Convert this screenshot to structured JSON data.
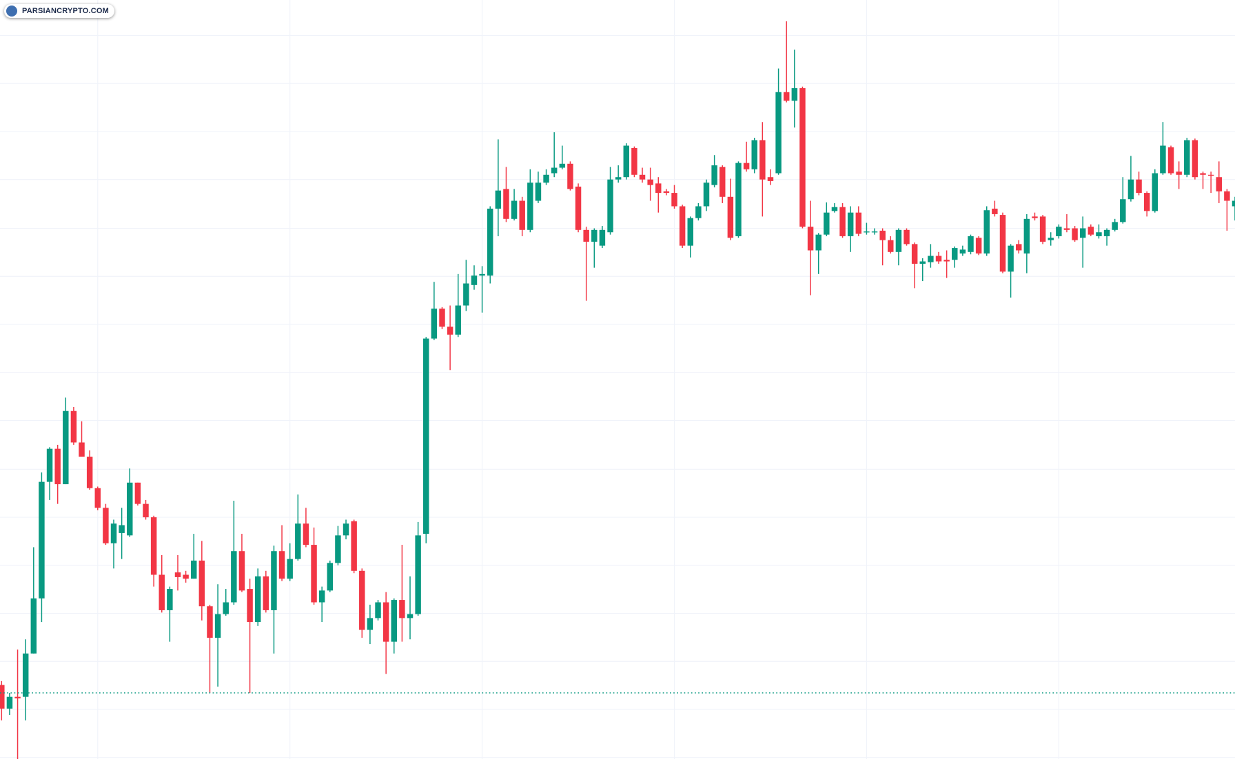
{
  "brand": "PARSIANCRYPTO.COM",
  "chart_data": {
    "type": "candlestick",
    "up_color": "#089981",
    "down_color": "#f23645",
    "price_line_color": "#089981",
    "xlim": [
      -0.2,
      154.0
    ],
    "ylim": [
      0,
      964
    ],
    "grid_x": [
      12,
      36,
      60,
      84,
      108,
      132
    ],
    "grid_y": [
      919,
      858,
      797,
      736,
      674,
      613,
      552,
      491,
      430,
      368,
      307,
      246,
      185,
      124,
      63,
      2
    ],
    "price_line": 84,
    "ohlc": [
      [
        94,
        99,
        49,
        64
      ],
      [
        64,
        84,
        56,
        79
      ],
      [
        79,
        139,
        0,
        77
      ],
      [
        79,
        152,
        49,
        134
      ],
      [
        134,
        269,
        134,
        204
      ],
      [
        204,
        364,
        174,
        352
      ],
      [
        352,
        396,
        329,
        394
      ],
      [
        394,
        399,
        324,
        349
      ],
      [
        349,
        459,
        349,
        442
      ],
      [
        442,
        447,
        399,
        402
      ],
      [
        402,
        429,
        384,
        384
      ],
      [
        384,
        392,
        342,
        344
      ],
      [
        344,
        346,
        316,
        319
      ],
      [
        319,
        324,
        272,
        274
      ],
      [
        274,
        304,
        242,
        299
      ],
      [
        287,
        319,
        254,
        297
      ],
      [
        284,
        369,
        282,
        351
      ],
      [
        351,
        351,
        322,
        324
      ],
      [
        324,
        329,
        304,
        307
      ],
      [
        307,
        309,
        219,
        234
      ],
      [
        234,
        259,
        186,
        189
      ],
      [
        189,
        219,
        149,
        216
      ],
      [
        237,
        259,
        214,
        231
      ],
      [
        234,
        239,
        224,
        229
      ],
      [
        229,
        286,
        229,
        252
      ],
      [
        252,
        277,
        176,
        194
      ],
      [
        194,
        196,
        84,
        154
      ],
      [
        154,
        222,
        92,
        184
      ],
      [
        184,
        216,
        182,
        199
      ],
      [
        199,
        328,
        196,
        264
      ],
      [
        264,
        286,
        212,
        214
      ],
      [
        216,
        229,
        84,
        174
      ],
      [
        174,
        242,
        169,
        232
      ],
      [
        232,
        239,
        186,
        189
      ],
      [
        189,
        271,
        134,
        264
      ],
      [
        264,
        297,
        226,
        229
      ],
      [
        229,
        274,
        226,
        254
      ],
      [
        254,
        336,
        252,
        299
      ],
      [
        299,
        319,
        269,
        272
      ],
      [
        272,
        294,
        196,
        199
      ],
      [
        199,
        219,
        174,
        214
      ],
      [
        214,
        252,
        212,
        249
      ],
      [
        249,
        296,
        246,
        284
      ],
      [
        284,
        304,
        279,
        299
      ],
      [
        302,
        304,
        236,
        239
      ],
      [
        239,
        242,
        154,
        164
      ],
      [
        164,
        196,
        146,
        179
      ],
      [
        179,
        202,
        176,
        199
      ],
      [
        199,
        212,
        108,
        149
      ],
      [
        149,
        204,
        134,
        202
      ],
      [
        202,
        272,
        149,
        179
      ],
      [
        179,
        232,
        152,
        184
      ],
      [
        184,
        301,
        182,
        284
      ],
      [
        286,
        536,
        274,
        534
      ],
      [
        534,
        606,
        532,
        572
      ],
      [
        572,
        574,
        546,
        549
      ],
      [
        549,
        576,
        494,
        539
      ],
      [
        539,
        616,
        536,
        576
      ],
      [
        576,
        634,
        569,
        604
      ],
      [
        602,
        627,
        596,
        614
      ],
      [
        614,
        626,
        567,
        616
      ],
      [
        614,
        702,
        604,
        699
      ],
      [
        699,
        787,
        664,
        722
      ],
      [
        724,
        752,
        682,
        686
      ],
      [
        686,
        724,
        684,
        709
      ],
      [
        709,
        714,
        664,
        672
      ],
      [
        672,
        749,
        669,
        732
      ],
      [
        709,
        746,
        706,
        732
      ],
      [
        732,
        749,
        729,
        742
      ],
      [
        744,
        796,
        739,
        751
      ],
      [
        751,
        779,
        749,
        756
      ],
      [
        756,
        759,
        722,
        724
      ],
      [
        727,
        731,
        669,
        672
      ],
      [
        672,
        676,
        582,
        657
      ],
      [
        657,
        674,
        624,
        672
      ],
      [
        652,
        677,
        649,
        672
      ],
      [
        669,
        752,
        666,
        736
      ],
      [
        736,
        754,
        732,
        739
      ],
      [
        739,
        782,
        736,
        779
      ],
      [
        776,
        778,
        739,
        742
      ],
      [
        742,
        751,
        732,
        736
      ],
      [
        736,
        751,
        709,
        729
      ],
      [
        731,
        739,
        694,
        719
      ],
      [
        721,
        724,
        716,
        719
      ],
      [
        719,
        729,
        699,
        702
      ],
      [
        702,
        704,
        649,
        652
      ],
      [
        652,
        689,
        637,
        687
      ],
      [
        687,
        706,
        684,
        702
      ],
      [
        702,
        736,
        696,
        732
      ],
      [
        729,
        767,
        726,
        754
      ],
      [
        752,
        754,
        706,
        714
      ],
      [
        714,
        737,
        659,
        662
      ],
      [
        664,
        759,
        662,
        757
      ],
      [
        757,
        784,
        746,
        749
      ],
      [
        749,
        789,
        744,
        786
      ],
      [
        786,
        809,
        689,
        736
      ],
      [
        739,
        749,
        729,
        734
      ],
      [
        744,
        877,
        742,
        847
      ],
      [
        847,
        937,
        834,
        836
      ],
      [
        836,
        901,
        802,
        852
      ],
      [
        852,
        854,
        674,
        676
      ],
      [
        676,
        709,
        589,
        646
      ],
      [
        646,
        668,
        616,
        666
      ],
      [
        666,
        707,
        664,
        694
      ],
      [
        696,
        706,
        694,
        701
      ],
      [
        701,
        706,
        662,
        664
      ],
      [
        664,
        702,
        644,
        694
      ],
      [
        694,
        702,
        664,
        667
      ],
      [
        669,
        681,
        666,
        670
      ],
      [
        669,
        674,
        666,
        670
      ],
      [
        671,
        674,
        627,
        659
      ],
      [
        659,
        664,
        642,
        644
      ],
      [
        644,
        674,
        627,
        672
      ],
      [
        672,
        674,
        652,
        654
      ],
      [
        654,
        656,
        598,
        629
      ],
      [
        629,
        636,
        607,
        632
      ],
      [
        631,
        654,
        624,
        639
      ],
      [
        639,
        644,
        629,
        632
      ],
      [
        634,
        646,
        611,
        632
      ],
      [
        634,
        651,
        624,
        649
      ],
      [
        642,
        652,
        639,
        647
      ],
      [
        644,
        666,
        641,
        664
      ],
      [
        662,
        664,
        640,
        642
      ],
      [
        642,
        702,
        639,
        697
      ],
      [
        699,
        709,
        689,
        692
      ],
      [
        691,
        694,
        617,
        619
      ],
      [
        619,
        654,
        586,
        652
      ],
      [
        654,
        659,
        642,
        646
      ],
      [
        642,
        692,
        617,
        686
      ],
      [
        689,
        694,
        684,
        687
      ],
      [
        689,
        691,
        654,
        657
      ],
      [
        659,
        669,
        652,
        662
      ],
      [
        664,
        679,
        661,
        676
      ],
      [
        674,
        692,
        669,
        672
      ],
      [
        674,
        677,
        657,
        659
      ],
      [
        662,
        689,
        624,
        674
      ],
      [
        676,
        679,
        664,
        666
      ],
      [
        664,
        679,
        661,
        669
      ],
      [
        664,
        674,
        652,
        672
      ],
      [
        672,
        686,
        670,
        682
      ],
      [
        682,
        739,
        680,
        711
      ],
      [
        711,
        766,
        708,
        736
      ],
      [
        736,
        746,
        716,
        719
      ],
      [
        719,
        721,
        689,
        696
      ],
      [
        696,
        749,
        694,
        744
      ],
      [
        744,
        809,
        742,
        779
      ],
      [
        777,
        779,
        742,
        744
      ],
      [
        746,
        759,
        724,
        742
      ],
      [
        742,
        789,
        739,
        786
      ],
      [
        786,
        788,
        736,
        739
      ],
      [
        744,
        746,
        724,
        742
      ],
      [
        742,
        746,
        719,
        741
      ],
      [
        739,
        759,
        706,
        721
      ],
      [
        721,
        724,
        671,
        709
      ],
      [
        702,
        714,
        684,
        709
      ]
    ]
  }
}
